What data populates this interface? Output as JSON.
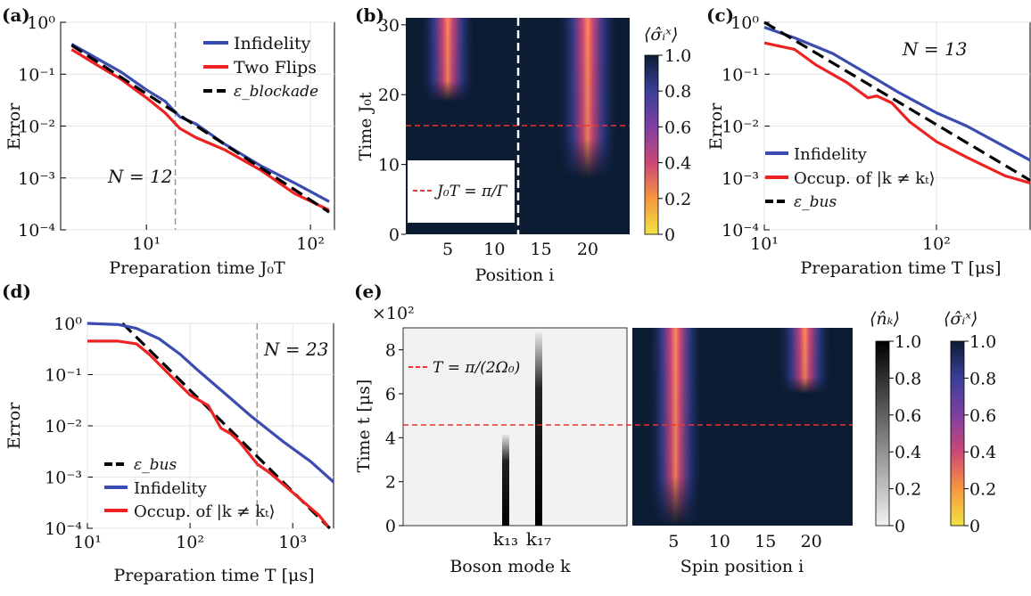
{
  "colors": {
    "infidelity": "#3b4cb0",
    "two_flips": "#ee2222",
    "blockade": "#000000",
    "marker_red": "#ee3333",
    "marker_grey": "#999999",
    "heatmap_bg": "#0c1c33"
  },
  "panels": {
    "a": {
      "tag": "(a)",
      "xlabel": "Preparation time J₀T",
      "ylabel": "Error",
      "annotation": "N = 12",
      "legend": [
        "Infidelity",
        "Two Flips",
        "ε_blockade"
      ],
      "yticks": [
        "10⁰",
        "10⁻¹",
        "10⁻²",
        "10⁻³",
        "10⁻⁴"
      ],
      "xticks": [
        "10¹",
        "10²"
      ]
    },
    "b": {
      "tag": "(b)",
      "xlabel": "Position i",
      "ylabel": "Time J₀t",
      "legend": "J₀T = π/Γ",
      "xticks": [
        "5",
        "10",
        "15",
        "20"
      ],
      "yticks": [
        "0",
        "10",
        "20",
        "30"
      ],
      "cbar_title": "⟨σ̂ᵢˣ⟩",
      "cbar_ticks": [
        "1.0",
        "0.8",
        "0.6",
        "0.4",
        "0.2",
        "0"
      ]
    },
    "c": {
      "tag": "(c)",
      "xlabel": "Preparation time T [μs]",
      "ylabel": "Error",
      "annotation": "N = 13",
      "legend": [
        "Infidelity",
        "Occup. of |k ≠ kₜ⟩",
        "ε_bus"
      ],
      "yticks": [
        "10⁰",
        "10⁻¹",
        "10⁻²",
        "10⁻³",
        "10⁻⁴"
      ],
      "xticks": [
        "10¹",
        "10²"
      ]
    },
    "d": {
      "tag": "(d)",
      "xlabel": "Preparation time T [μs]",
      "ylabel": "Error",
      "annotation": "N = 23",
      "legend": [
        "ε_bus",
        "Infidelity",
        "Occup. of |k ≠ kₜ⟩"
      ],
      "yticks": [
        "10⁰",
        "10⁻¹",
        "10⁻²",
        "10⁻³",
        "10⁻⁴"
      ],
      "xticks": [
        "10¹",
        "10²",
        "10³"
      ]
    },
    "e": {
      "tag": "(e)",
      "ylabel": "Time t [μs]",
      "multiplier": "×10²",
      "legend": "T = π/(2Ω₀)",
      "yticks": [
        "0",
        "2",
        "4",
        "6",
        "8"
      ],
      "left_xlabel": "Boson mode k",
      "left_xticks": [
        "k₁₃",
        "k₁₇"
      ],
      "right_xlabel": "Spin position i",
      "right_xticks": [
        "5",
        "10",
        "15",
        "20"
      ],
      "cbar1_title": "⟨n̂ₖ⟩",
      "cbar2_title": "⟨σ̂ᵢˣ⟩",
      "cbar_ticks": [
        "1.0",
        "0.8",
        "0.6",
        "0.4",
        "0.2",
        "0"
      ]
    }
  },
  "chart_data": [
    {
      "panel": "a",
      "type": "line",
      "xscale": "log",
      "yscale": "log",
      "xlim": [
        3,
        140
      ],
      "ylim": [
        0.0001,
        1
      ],
      "vline_x": 15,
      "series": [
        {
          "name": "Infidelity",
          "x": [
            3.5,
            5,
            7,
            10,
            13,
            16,
            20,
            30,
            50,
            80,
            130
          ],
          "y": [
            0.38,
            0.2,
            0.11,
            0.05,
            0.03,
            0.015,
            0.011,
            0.0045,
            0.0017,
            0.0008,
            0.00035
          ]
        },
        {
          "name": "Two Flips",
          "x": [
            3.5,
            5,
            7,
            10,
            13,
            16,
            20,
            30,
            50,
            80,
            130
          ],
          "y": [
            0.3,
            0.15,
            0.08,
            0.035,
            0.018,
            0.009,
            0.006,
            0.0035,
            0.0014,
            0.0005,
            0.00024
          ]
        },
        {
          "name": "ε_blockade",
          "x": [
            3.5,
            130
          ],
          "y": [
            0.36,
            0.00022
          ]
        }
      ]
    },
    {
      "panel": "b",
      "type": "heatmap",
      "xlim": [
        0.5,
        24.5
      ],
      "ylim": [
        0,
        31
      ],
      "vline_x": 12.75,
      "hline_y": 15.7,
      "blobs": [
        {
          "center": 5,
          "width": 2.2,
          "t_start": 19,
          "t_end": 31,
          "peak": 0.45
        },
        {
          "center": 20,
          "width": 2.4,
          "t_start": 8,
          "t_end": 31,
          "peak": 0.45
        }
      ]
    },
    {
      "panel": "c",
      "type": "line",
      "xscale": "log",
      "yscale": "log",
      "xlim": [
        10,
        350
      ],
      "ylim": [
        0.0001,
        1
      ],
      "series": [
        {
          "name": "Infidelity",
          "x": [
            10,
            15,
            25,
            40,
            60,
            100,
            150,
            250,
            350
          ],
          "y": [
            0.8,
            0.5,
            0.25,
            0.1,
            0.045,
            0.018,
            0.01,
            0.004,
            0.0022
          ]
        },
        {
          "name": "Occup. of |k ≠ kₜ⟩",
          "x": [
            10,
            15,
            20,
            30,
            40,
            45,
            55,
            70,
            100,
            150,
            250,
            350
          ],
          "y": [
            0.4,
            0.3,
            0.15,
            0.07,
            0.035,
            0.038,
            0.028,
            0.012,
            0.005,
            0.0025,
            0.0011,
            0.0008
          ]
        },
        {
          "name": "ε_bus",
          "x": [
            10,
            350
          ],
          "y": [
            1.0,
            0.0009
          ]
        }
      ]
    },
    {
      "panel": "d",
      "type": "line",
      "xscale": "log",
      "yscale": "log",
      "xlim": [
        10,
        2500
      ],
      "ylim": [
        0.0001,
        1
      ],
      "vline_x": 450,
      "series": [
        {
          "name": "ε_bus",
          "x": [
            22,
            2300
          ],
          "y": [
            1.0,
            0.0001
          ]
        },
        {
          "name": "Infidelity",
          "x": [
            10,
            20,
            30,
            50,
            80,
            120,
            200,
            400,
            800,
            1500,
            2500
          ],
          "y": [
            1.0,
            0.95,
            0.8,
            0.5,
            0.25,
            0.12,
            0.05,
            0.015,
            0.005,
            0.002,
            0.0008
          ]
        },
        {
          "name": "Occup. of |k ≠ kₜ⟩",
          "x": [
            10,
            20,
            30,
            40,
            60,
            100,
            150,
            200,
            250,
            300,
            450,
            600,
            1000,
            1800,
            2200
          ],
          "y": [
            0.45,
            0.45,
            0.4,
            0.25,
            0.11,
            0.04,
            0.025,
            0.009,
            0.007,
            0.005,
            0.0018,
            0.0012,
            0.0005,
            0.00018,
            0.00011
          ]
        }
      ]
    },
    {
      "panel": "e-left",
      "type": "heatmap",
      "ylim": [
        0,
        9
      ],
      "hline_y": 4.5,
      "modes": [
        {
          "label": "k₁₃",
          "t_end": 4.2
        },
        {
          "label": "k₁₇",
          "t_end": 8.9
        }
      ]
    },
    {
      "panel": "e-right",
      "type": "heatmap",
      "xlim": [
        0.5,
        24.5
      ],
      "ylim": [
        0,
        9
      ],
      "hline_y": 4.5,
      "blobs": [
        {
          "center": 5.2,
          "width": 2.2,
          "t_start": 0,
          "t_end": 9,
          "peak": 0.45
        },
        {
          "center": 19.3,
          "width": 2.2,
          "t_start": 6,
          "t_end": 9,
          "peak": 0.45
        }
      ]
    }
  ]
}
